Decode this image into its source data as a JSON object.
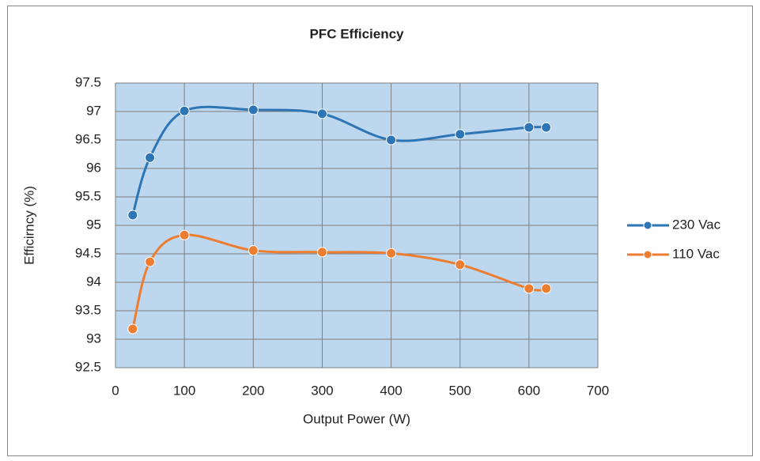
{
  "chart_data": {
    "type": "line",
    "title": "PFC Efficiency",
    "x_label": "Output Power (W)",
    "y_label": "Efficirncy (%)",
    "xlim": [
      0,
      700
    ],
    "xticks": [
      0,
      100,
      200,
      300,
      400,
      500,
      600,
      700
    ],
    "ylim": [
      92.5,
      97.5
    ],
    "yticks": [
      92.5,
      93,
      93.5,
      94,
      94.5,
      95,
      95.5,
      96,
      96.5,
      97,
      97.5
    ],
    "grid": true,
    "smooth": true,
    "legend": "right",
    "series": [
      {
        "name": "230 Vac",
        "color": "#2e75b6",
        "x": [
          25,
          50,
          100,
          200,
          300,
          400,
          500,
          600,
          625
        ],
        "values": [
          95.18,
          96.19,
          97.01,
          97.03,
          96.96,
          96.5,
          96.6,
          96.72,
          96.72
        ]
      },
      {
        "name": "110 Vac",
        "color": "#ed7d31",
        "x": [
          25,
          50,
          100,
          200,
          300,
          400,
          500,
          600,
          625
        ],
        "values": [
          93.18,
          94.36,
          94.83,
          94.56,
          94.53,
          94.51,
          94.31,
          93.89,
          93.89
        ]
      }
    ]
  }
}
